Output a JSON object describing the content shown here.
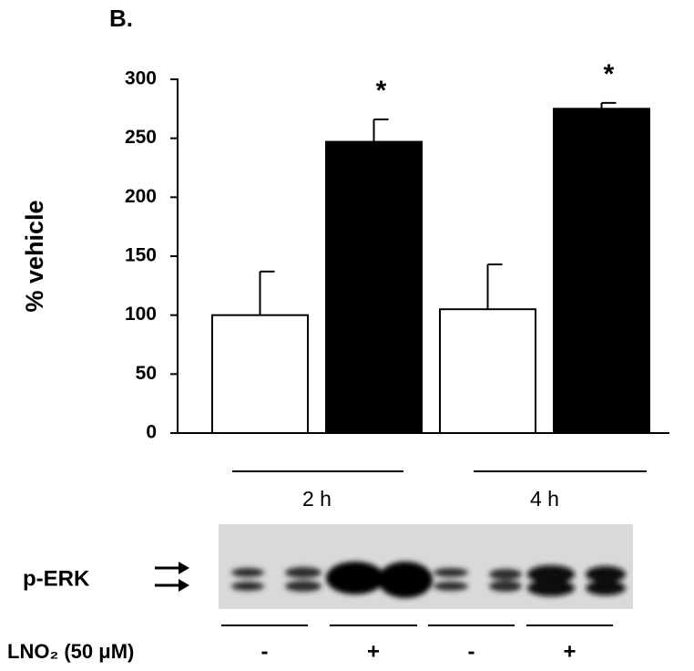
{
  "chart_data": {
    "type": "bar",
    "panel_label": "B.",
    "ylabel": "% vehicle",
    "categories": [
      "-",
      "+",
      "-",
      "+"
    ],
    "groups": [
      "2 h",
      "4 h"
    ],
    "values": [
      100,
      247,
      105,
      275
    ],
    "errors": [
      37,
      19,
      38,
      5
    ],
    "significance": [
      null,
      "*",
      null,
      "*"
    ],
    "bar_colors": [
      "#ffffff",
      "#000000",
      "#ffffff",
      "#000000"
    ],
    "ylim": [
      0,
      300
    ],
    "yticks": [
      0,
      50,
      100,
      150,
      200,
      250,
      300
    ],
    "grid": false,
    "blot_label": "p-ERK",
    "treatment_label": "LNO₂ (50 μM)"
  }
}
